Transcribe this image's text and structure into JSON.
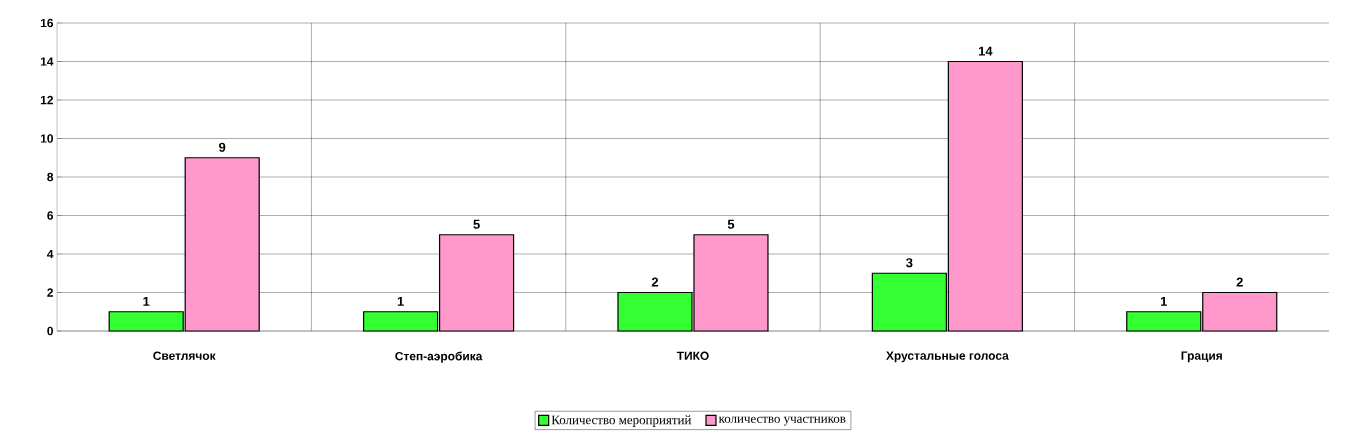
{
  "chart_data": {
    "type": "bar",
    "categories": [
      "Светлячок",
      "Степ-аэробика",
      "ТИКО",
      "Хрустальные голоса",
      "Грация"
    ],
    "series": [
      {
        "name": "Количество мероприятий",
        "color": "#33ff33",
        "values": [
          1,
          1,
          2,
          3,
          1
        ]
      },
      {
        "name": "количество участников",
        "color": "#ff99cc",
        "values": [
          9,
          5,
          5,
          14,
          2
        ]
      }
    ],
    "ylim": [
      0,
      16
    ],
    "yticks": [
      0,
      2,
      4,
      6,
      8,
      10,
      12,
      14,
      16
    ],
    "grid": true,
    "legend": "bottom",
    "data_labels": true
  }
}
